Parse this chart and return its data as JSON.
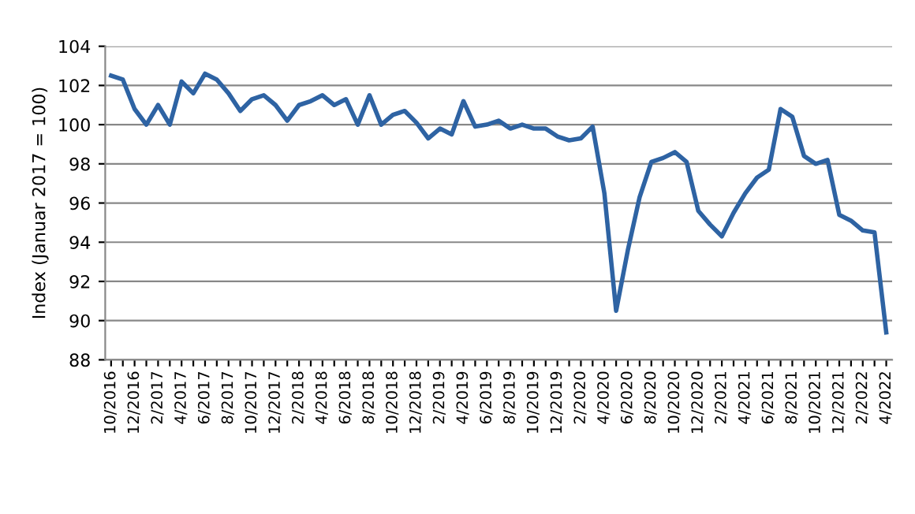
{
  "chart_data": {
    "type": "line",
    "ylabel": "Index (Januar 2017 = 100)",
    "categories": [
      "10/2016",
      null,
      "12/2016",
      null,
      "2/2017",
      null,
      "4/2017",
      null,
      "6/2017",
      null,
      "8/2017",
      null,
      "10/2017",
      null,
      "12/2017",
      null,
      "2/2018",
      null,
      "4/2018",
      null,
      "6/2018",
      null,
      "8/2018",
      null,
      "10/2018",
      null,
      "12/2018",
      null,
      "2/2019",
      null,
      "4/2019",
      null,
      "6/2019",
      null,
      "8/2019",
      null,
      "10/2019",
      null,
      "12/2019",
      null,
      "2/2020",
      null,
      "4/2020",
      null,
      "6/2020",
      null,
      "8/2020",
      null,
      "10/2020",
      null,
      "12/2020",
      null,
      "2/2021",
      null,
      "4/2021",
      null,
      "6/2021",
      null,
      "8/2021",
      null,
      "10/2021",
      null,
      "12/2021",
      null,
      "2/2022",
      null,
      "4/2022"
    ],
    "series": [
      {
        "color": "#2e63a3",
        "values": [
          102.5,
          102.3,
          100.8,
          100.0,
          101.0,
          100.0,
          102.2,
          101.6,
          102.6,
          102.3,
          101.6,
          100.7,
          101.3,
          101.5,
          101.0,
          100.2,
          101.0,
          101.2,
          101.5,
          101.0,
          101.3,
          100.0,
          101.5,
          100.0,
          100.5,
          100.7,
          100.1,
          99.3,
          99.8,
          99.5,
          101.2,
          99.9,
          100.0,
          100.2,
          99.8,
          100.0,
          99.8,
          99.8,
          99.4,
          99.2,
          99.3,
          99.9,
          96.5,
          90.5,
          93.6,
          96.3,
          98.1,
          98.3,
          98.6,
          98.1,
          95.6,
          94.9,
          94.3,
          95.5,
          96.5,
          97.3,
          97.7,
          100.8,
          100.4,
          98.4,
          98.0,
          98.2,
          95.4,
          95.1,
          94.6,
          94.5,
          89.4
        ]
      }
    ],
    "ylim": [
      88,
      104
    ],
    "yticks": [
      88,
      90,
      92,
      94,
      96,
      98,
      100,
      102,
      104
    ],
    "grid": "y",
    "marker": "none",
    "line_style": "solid"
  }
}
